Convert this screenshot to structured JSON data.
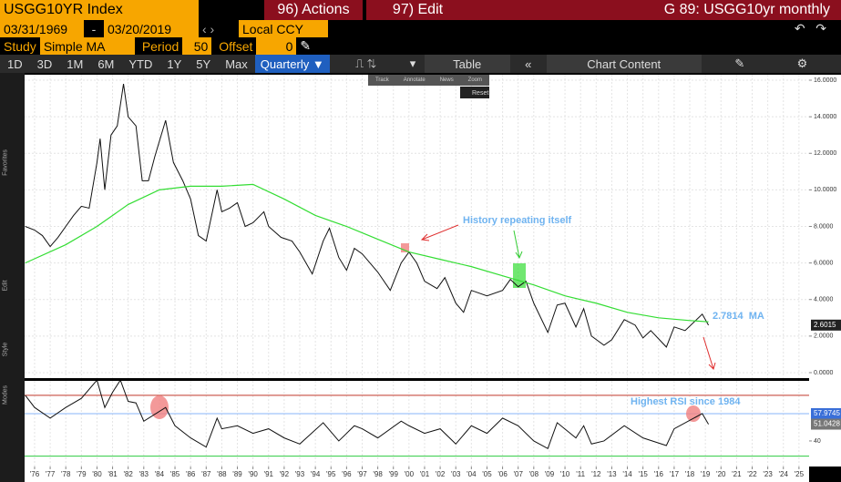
{
  "header": {
    "security": "USGG10YR Index",
    "actions": "96) Actions",
    "edit": "97) Edit",
    "page_title": "G 89: USGG10yr monthly",
    "start_date": "03/31/1969",
    "date_sep": "-",
    "end_date": "03/20/2019",
    "currency": "Local CCY",
    "study_label": "Study",
    "study": "Simple MA",
    "period_label": "Period",
    "period": 50,
    "offset_label": "Offset",
    "offset": 0,
    "ranges": [
      "1D",
      "3D",
      "1M",
      "6M",
      "YTD",
      "1Y",
      "5Y",
      "Max"
    ],
    "frequency": "Quarterly",
    "table": "Table",
    "chart_content": "Chart Content",
    "mini_tools": [
      "Track",
      "Annotate",
      "News",
      "Zoom"
    ],
    "reset": "Reset",
    "side_labels": [
      "Favorites",
      "Edit",
      "Style",
      "Modes"
    ]
  },
  "chart_data": [
    {
      "type": "line",
      "xlim": [
        1975.36,
        2025.65
      ],
      "ylim": [
        -0.3,
        16.3
      ],
      "yticks": [
        {
          "value": 0,
          "label": "0.0000"
        },
        {
          "value": 2,
          "label": "2.0000"
        },
        {
          "value": 4,
          "label": "4.0000"
        },
        {
          "value": 6,
          "label": "6.0000"
        },
        {
          "value": 8,
          "label": "8.0000"
        },
        {
          "value": 10,
          "label": "10.0000"
        },
        {
          "value": 12,
          "label": "12.0000"
        },
        {
          "value": 14,
          "label": "14.0000"
        },
        {
          "value": 16,
          "label": "16.0000"
        }
      ],
      "grid": true,
      "series": [
        {
          "color": "#111111",
          "x": [
            1975.4,
            1976,
            1976.5,
            1977,
            1977.5,
            1978,
            1978.5,
            1979,
            1979.5,
            1980,
            1980.2,
            1980.5,
            1980.9,
            1981.3,
            1981.7,
            1982,
            1982.5,
            1982.9,
            1983.3,
            1983.7,
            1984.4,
            1984.9,
            1985.5,
            1986,
            1986.5,
            1987,
            1987.7,
            1988,
            1988.5,
            1989,
            1989.5,
            1990,
            1990.7,
            1991,
            1991.8,
            1992.5,
            1993,
            1993.8,
            1994.5,
            1994.9,
            1995.5,
            1996,
            1996.5,
            1997,
            1998,
            1998.8,
            1999.5,
            2000,
            2000.5,
            2001,
            2001.8,
            2002.3,
            2003,
            2003.5,
            2004,
            2005,
            2006,
            2006.5,
            2007,
            2007.5,
            2008,
            2008.9,
            2009.5,
            2010,
            2010.7,
            2011.2,
            2011.7,
            2012.5,
            2013,
            2013.8,
            2014.5,
            2015,
            2015.5,
            2016.5,
            2017,
            2017.7,
            2018.8,
            2019.2
          ],
          "values": [
            8.0,
            7.8,
            7.5,
            6.9,
            7.4,
            8.0,
            8.6,
            9.1,
            9.0,
            11.5,
            12.8,
            10.0,
            13.0,
            13.5,
            15.8,
            14.0,
            13.5,
            10.5,
            10.5,
            11.8,
            13.8,
            11.5,
            10.5,
            9.5,
            7.5,
            7.2,
            10.0,
            8.8,
            9.0,
            9.3,
            8.0,
            8.2,
            8.8,
            8.0,
            7.4,
            7.2,
            6.6,
            5.4,
            7.2,
            7.9,
            6.3,
            5.6,
            6.8,
            6.5,
            5.5,
            4.5,
            6.0,
            6.6,
            6.0,
            5.0,
            4.6,
            5.2,
            3.8,
            3.3,
            4.5,
            4.2,
            4.5,
            5.1,
            4.7,
            5.0,
            3.8,
            2.2,
            3.7,
            3.8,
            2.5,
            3.5,
            2.0,
            1.5,
            1.8,
            2.9,
            2.6,
            1.9,
            2.3,
            1.4,
            2.5,
            2.3,
            3.2,
            2.6
          ]
        },
        {
          "color": "#33dd33",
          "x": [
            1975.4,
            1978,
            1980,
            1982,
            1984,
            1986,
            1988,
            1990,
            1992,
            1994,
            1996,
            1998,
            2000,
            2002,
            2004,
            2006,
            2008,
            2010,
            2012,
            2014,
            2016,
            2018,
            2019.2
          ],
          "values": [
            6.0,
            7.0,
            8.0,
            9.2,
            10.0,
            10.2,
            10.2,
            10.3,
            9.5,
            8.6,
            8.0,
            7.3,
            6.6,
            6.2,
            5.8,
            5.3,
            4.8,
            4.2,
            3.8,
            3.3,
            3.0,
            2.85,
            2.7814
          ]
        }
      ],
      "last_label": 2.6015,
      "annotations": [
        "History repeating itself",
        "2.7814  MA"
      ]
    },
    {
      "type": "line",
      "xlim": [
        1975.36,
        2025.65
      ],
      "ylim": [
        23.2,
        79.5
      ],
      "yticks": [
        40
      ],
      "xticks": [
        {
          "value": 1976,
          "label": "'76"
        },
        {
          "value": 1977,
          "label": "'77"
        },
        {
          "value": 1978,
          "label": "'78"
        },
        {
          "value": 1979,
          "label": "'79"
        },
        {
          "value": 1980,
          "label": "'80"
        },
        {
          "value": 1981,
          "label": "'81"
        },
        {
          "value": 1982,
          "label": "'82"
        },
        {
          "value": 1983,
          "label": "'83"
        },
        {
          "value": 1984,
          "label": "'84"
        },
        {
          "value": 1985,
          "label": "'85"
        },
        {
          "value": 1986,
          "label": "'86"
        },
        {
          "value": 1987,
          "label": "'87"
        },
        {
          "value": 1988,
          "label": "'88"
        },
        {
          "value": 1989,
          "label": "'89"
        },
        {
          "value": 1990,
          "label": "'90"
        },
        {
          "value": 1991,
          "label": "'91"
        },
        {
          "value": 1992,
          "label": "'92"
        },
        {
          "value": 1993,
          "label": "'93"
        },
        {
          "value": 1994,
          "label": "'94"
        },
        {
          "value": 1995,
          "label": "'95"
        },
        {
          "value": 1996,
          "label": "'96"
        },
        {
          "value": 1997,
          "label": "'97"
        },
        {
          "value": 1998,
          "label": "'98"
        },
        {
          "value": 1999,
          "label": "'99"
        },
        {
          "value": 2000,
          "label": "'00"
        },
        {
          "value": 2001,
          "label": "'01"
        },
        {
          "value": 2002,
          "label": "'02"
        },
        {
          "value": 2003,
          "label": "'03"
        },
        {
          "value": 2004,
          "label": "'04"
        },
        {
          "value": 2005,
          "label": "'05"
        },
        {
          "value": 2006,
          "label": "'06"
        },
        {
          "value": 2007,
          "label": "'07"
        },
        {
          "value": 2008,
          "label": "'08"
        },
        {
          "value": 2009,
          "label": "'09"
        },
        {
          "value": 2010,
          "label": "'10"
        },
        {
          "value": 2011,
          "label": "'11"
        },
        {
          "value": 2012,
          "label": "'12"
        },
        {
          "value": 2013,
          "label": "'13"
        },
        {
          "value": 2014,
          "label": "'14"
        },
        {
          "value": 2015,
          "label": "'15"
        },
        {
          "value": 2016,
          "label": "'16"
        },
        {
          "value": 2017,
          "label": "'17"
        },
        {
          "value": 2018,
          "label": "'18"
        },
        {
          "value": 2019,
          "label": "'19"
        },
        {
          "value": 2020,
          "label": "'20"
        },
        {
          "value": 2021,
          "label": "'21"
        },
        {
          "value": 2022,
          "label": "'22"
        },
        {
          "value": 2023,
          "label": "'23"
        },
        {
          "value": 2024,
          "label": "'24"
        },
        {
          "value": 2025,
          "label": "'25"
        }
      ],
      "series": [
        {
          "color": "#111111",
          "x": [
            1975.4,
            1976,
            1977,
            1978,
            1979,
            1980,
            1980.5,
            1981,
            1981.5,
            1982,
            1982.5,
            1983,
            1984.4,
            1985,
            1986,
            1987,
            1987.7,
            1988,
            1989,
            1990,
            1991,
            1992,
            1993,
            1994.5,
            1995.5,
            1996.5,
            1997,
            1998,
            1999.5,
            2000,
            2001,
            2002,
            2003,
            2004,
            2005,
            2006,
            2007,
            2008,
            2008.9,
            2009.5,
            2010.7,
            2011.2,
            2011.7,
            2012.5,
            2013.8,
            2015,
            2016.5,
            2017,
            2018.8,
            2019.2
          ],
          "values": [
            70,
            62,
            55,
            62,
            68,
            80,
            62,
            72,
            80,
            66,
            65,
            53,
            62,
            50,
            42,
            36,
            55,
            48,
            50,
            45,
            48,
            42,
            38,
            52,
            40,
            50,
            48,
            42,
            53,
            50,
            45,
            48,
            38,
            50,
            45,
            55,
            50,
            40,
            35,
            52,
            42,
            50,
            38,
            40,
            50,
            42,
            37,
            48,
            58,
            51
          ]
        }
      ],
      "levels": [
        {
          "value": 70,
          "color": "#c0392b"
        },
        {
          "value": 30,
          "color": "#2ecc40"
        }
      ],
      "last_labels": [
        57.9745,
        51.0428
      ],
      "annotations": [
        "Highest RSI since 1984"
      ]
    }
  ]
}
